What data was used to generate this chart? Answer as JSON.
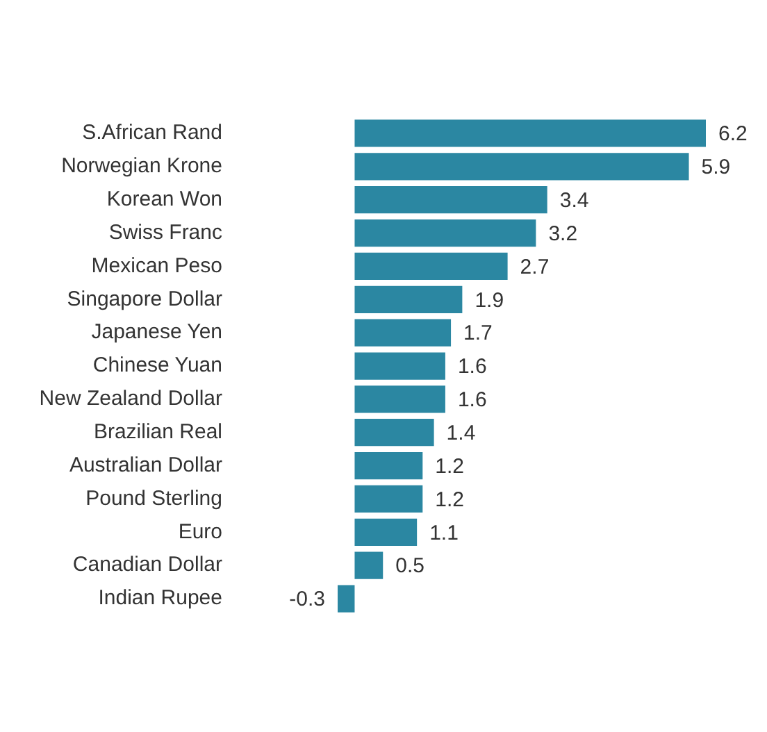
{
  "chart_data": {
    "type": "bar",
    "orientation": "horizontal",
    "categories": [
      "S.African Rand",
      "Norwegian Krone",
      "Korean Won",
      "Swiss Franc",
      "Mexican Peso",
      "Singapore Dollar",
      "Japanese Yen",
      "Chinese Yuan",
      "New Zealand Dollar",
      "Brazilian Real",
      "Australian Dollar",
      "Pound Sterling",
      "Euro",
      "Canadian Dollar",
      "Indian Rupee"
    ],
    "values": [
      6.2,
      5.9,
      3.4,
      3.2,
      2.7,
      1.9,
      1.7,
      1.6,
      1.6,
      1.4,
      1.2,
      1.2,
      1.1,
      0.5,
      -0.3
    ],
    "color": "#2b87a2",
    "data_labels": true
  }
}
